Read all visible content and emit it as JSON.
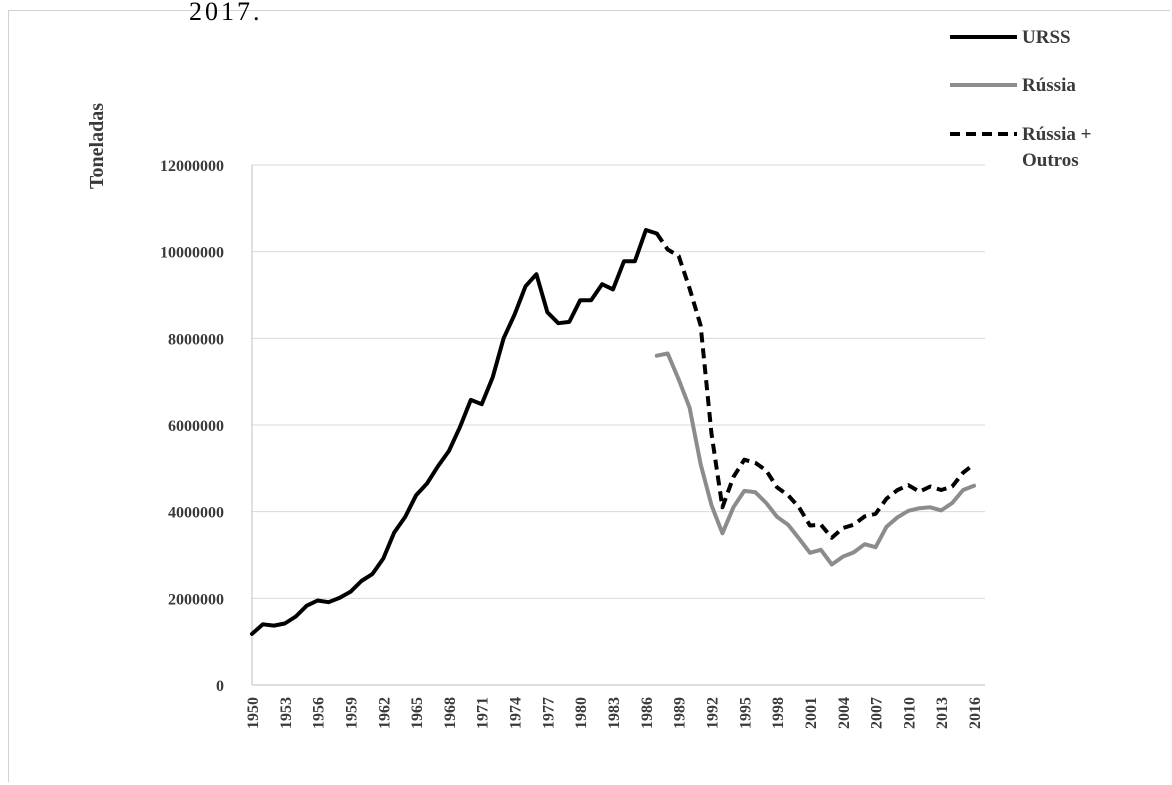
{
  "caption_fragment": "2017.",
  "chart_data": {
    "type": "line",
    "ylabel": "Toneladas",
    "xlabel": "",
    "ylim": [
      0,
      12000000
    ],
    "yticks": [
      0,
      2000000,
      4000000,
      6000000,
      8000000,
      10000000,
      12000000
    ],
    "xlim": [
      1950,
      2017
    ],
    "xticks": [
      1950,
      1953,
      1956,
      1959,
      1962,
      1965,
      1968,
      1971,
      1974,
      1977,
      1980,
      1983,
      1986,
      1989,
      1992,
      1995,
      1998,
      2001,
      2004,
      2007,
      2010,
      2013,
      2016
    ],
    "grid": "horizontal",
    "legend_position": "top-right",
    "series": [
      {
        "name": "URSS",
        "color": "#000000",
        "style": "solid",
        "points": [
          [
            1950,
            1180000
          ],
          [
            1951,
            1400000
          ],
          [
            1952,
            1370000
          ],
          [
            1953,
            1420000
          ],
          [
            1954,
            1580000
          ],
          [
            1955,
            1830000
          ],
          [
            1956,
            1950000
          ],
          [
            1957,
            1910000
          ],
          [
            1958,
            2010000
          ],
          [
            1959,
            2150000
          ],
          [
            1960,
            2400000
          ],
          [
            1961,
            2560000
          ],
          [
            1962,
            2920000
          ],
          [
            1963,
            3520000
          ],
          [
            1964,
            3880000
          ],
          [
            1965,
            4380000
          ],
          [
            1966,
            4650000
          ],
          [
            1967,
            5050000
          ],
          [
            1968,
            5400000
          ],
          [
            1969,
            5950000
          ],
          [
            1970,
            6580000
          ],
          [
            1971,
            6480000
          ],
          [
            1972,
            7100000
          ],
          [
            1973,
            8000000
          ],
          [
            1974,
            8550000
          ],
          [
            1975,
            9200000
          ],
          [
            1976,
            9480000
          ],
          [
            1977,
            8600000
          ],
          [
            1978,
            8350000
          ],
          [
            1979,
            8380000
          ],
          [
            1980,
            8880000
          ],
          [
            1981,
            8880000
          ],
          [
            1982,
            9250000
          ],
          [
            1983,
            9130000
          ],
          [
            1984,
            9780000
          ],
          [
            1985,
            9780000
          ],
          [
            1986,
            10500000
          ],
          [
            1987,
            10420000
          ]
        ]
      },
      {
        "name": "Rússia",
        "color": "#8c8c8c",
        "style": "solid",
        "points": [
          [
            1987,
            7600000
          ],
          [
            1988,
            7650000
          ],
          [
            1989,
            7050000
          ],
          [
            1990,
            6400000
          ],
          [
            1991,
            5100000
          ],
          [
            1992,
            4150000
          ],
          [
            1993,
            3500000
          ],
          [
            1994,
            4100000
          ],
          [
            1995,
            4480000
          ],
          [
            1996,
            4450000
          ],
          [
            1997,
            4200000
          ],
          [
            1998,
            3880000
          ],
          [
            1999,
            3700000
          ],
          [
            2000,
            3380000
          ],
          [
            2001,
            3050000
          ],
          [
            2002,
            3120000
          ],
          [
            2003,
            2780000
          ],
          [
            2004,
            2960000
          ],
          [
            2005,
            3060000
          ],
          [
            2006,
            3250000
          ],
          [
            2007,
            3180000
          ],
          [
            2008,
            3650000
          ],
          [
            2009,
            3870000
          ],
          [
            2010,
            4020000
          ],
          [
            2011,
            4080000
          ],
          [
            2012,
            4100000
          ],
          [
            2013,
            4030000
          ],
          [
            2014,
            4200000
          ],
          [
            2015,
            4500000
          ],
          [
            2016,
            4600000
          ]
        ]
      },
      {
        "name": "Rússia + Outros",
        "color": "#000000",
        "style": "dashed",
        "points": [
          [
            1987,
            10420000
          ],
          [
            1988,
            10050000
          ],
          [
            1989,
            9900000
          ],
          [
            1990,
            9150000
          ],
          [
            1991,
            8300000
          ],
          [
            1992,
            5800000
          ],
          [
            1993,
            4100000
          ],
          [
            1994,
            4800000
          ],
          [
            1995,
            5200000
          ],
          [
            1996,
            5130000
          ],
          [
            1997,
            4950000
          ],
          [
            1998,
            4560000
          ],
          [
            1999,
            4380000
          ],
          [
            2000,
            4100000
          ],
          [
            2001,
            3680000
          ],
          [
            2002,
            3700000
          ],
          [
            2003,
            3400000
          ],
          [
            2004,
            3620000
          ],
          [
            2005,
            3700000
          ],
          [
            2006,
            3890000
          ],
          [
            2007,
            3950000
          ],
          [
            2008,
            4300000
          ],
          [
            2009,
            4500000
          ],
          [
            2010,
            4610000
          ],
          [
            2011,
            4460000
          ],
          [
            2012,
            4580000
          ],
          [
            2013,
            4500000
          ],
          [
            2014,
            4580000
          ],
          [
            2015,
            4900000
          ],
          [
            2016,
            5100000
          ]
        ]
      }
    ]
  }
}
